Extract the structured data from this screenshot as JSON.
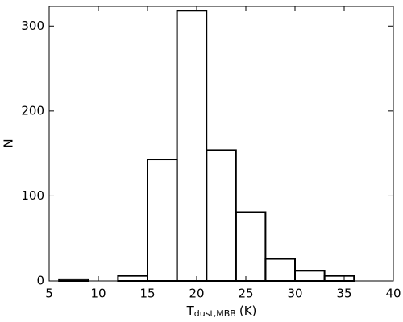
{
  "chart_data": {
    "type": "histogram",
    "bins": [
      6,
      9,
      12,
      15,
      18,
      21,
      24,
      27,
      30,
      33,
      36
    ],
    "values": [
      2,
      0,
      6,
      143,
      318,
      154,
      81,
      26,
      12,
      6
    ],
    "color": "#000000",
    "xlabel": {
      "main": "T",
      "sub": "dust,MBB",
      "unit": "(K)"
    },
    "ylabel": "N",
    "xlim": [
      5,
      40
    ],
    "xticks": [
      5,
      10,
      15,
      20,
      25,
      30,
      35,
      40
    ],
    "ylim": [
      0,
      323
    ],
    "yticks": [
      0,
      100,
      200,
      300
    ]
  }
}
